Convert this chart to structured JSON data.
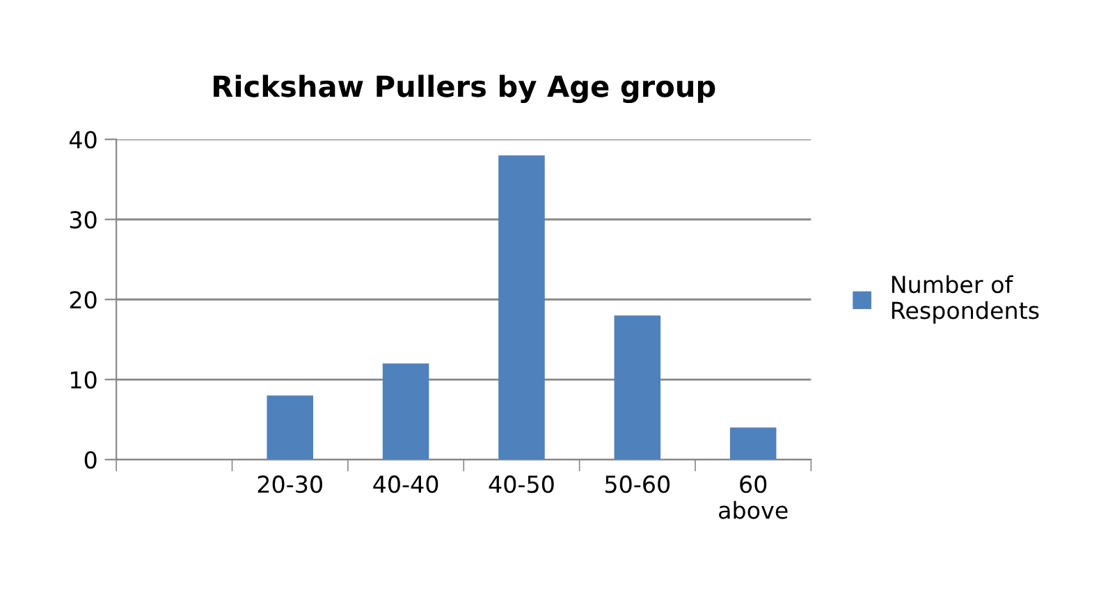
{
  "chart_data": {
    "type": "bar",
    "title": "Rickshaw Pullers by Age group",
    "categories": [
      null,
      "20-30",
      "40-40",
      "40-50",
      "50-60",
      "60 above"
    ],
    "series": [
      {
        "name": "Number of Respondents",
        "color": "#4f81bd",
        "values": [
          null,
          8,
          12,
          38,
          18,
          4
        ]
      }
    ],
    "ylim": [
      0,
      40
    ],
    "yticks": [
      0,
      10,
      20,
      30,
      40
    ],
    "grid": "y",
    "legend": "right"
  }
}
